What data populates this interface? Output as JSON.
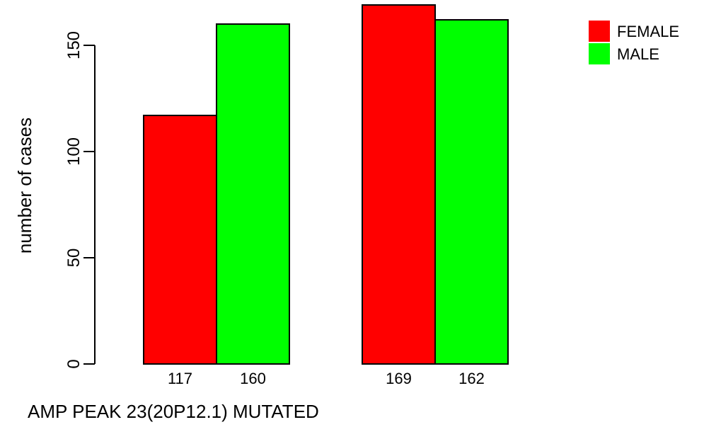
{
  "chart_data": {
    "type": "bar",
    "title": "",
    "xlabel": "AMP PEAK 23(20P12.1) MUTATED",
    "ylabel": "number of cases",
    "ylim": [
      0,
      169
    ],
    "yticks": [
      0,
      50,
      100,
      150
    ],
    "groups": [
      "",
      ""
    ],
    "series": [
      {
        "name": "FEMALE",
        "color": "#ff0000",
        "values": [
          117,
          169
        ]
      },
      {
        "name": "MALE",
        "color": "#00ff00",
        "values": [
          160,
          162
        ]
      }
    ],
    "bar_labels": [
      [
        "117",
        "160"
      ],
      [
        "169",
        "162"
      ]
    ],
    "legend_position": "top-right",
    "grid": false
  }
}
